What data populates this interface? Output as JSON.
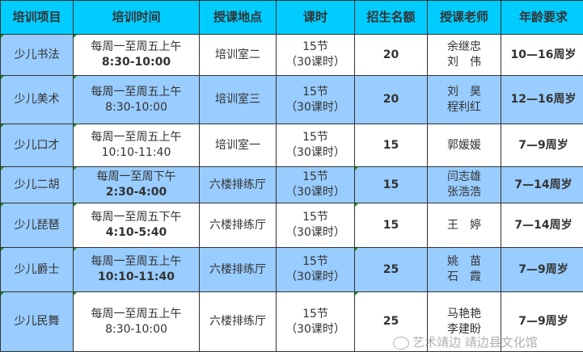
{
  "headers": [
    "培训项目",
    "培训时间",
    "授课地点",
    "课时",
    "招生名额",
    "授课老师",
    "年龄要求"
  ],
  "rows": [
    {
      "name": "少儿书法",
      "time": [
        "每周一至周五上午",
        "8:30-10:00"
      ],
      "place": "培训室二",
      "hours": [
        "15节",
        "（30课时）"
      ],
      "quota": "20",
      "teachers": [
        "余继忠",
        "刘　伟"
      ],
      "age": "10—16周岁"
    },
    {
      "name": "少儿美术",
      "time": [
        "每周一至周五上午",
        "8:30-10:00"
      ],
      "place": "培训室三",
      "hours": [
        "15节",
        "（30课时）"
      ],
      "quota": "20",
      "teachers": [
        "刘　昊",
        "程利红"
      ],
      "age": "12—16周岁"
    },
    {
      "name": "少儿口才",
      "time": [
        "每周一至周五上午",
        "10:10-11:40"
      ],
      "place": "培训室一",
      "hours": [
        "15节",
        "（30课时）"
      ],
      "quota": "15",
      "teachers": [
        "郭媛媛"
      ],
      "age": "7—9周岁"
    },
    {
      "name": "少儿二胡",
      "time": [
        "每周一至周下午",
        "2:30-4:00"
      ],
      "place": "六楼排练厅",
      "hours": [
        "15节",
        "（30课时）"
      ],
      "quota": "15",
      "teachers": [
        "闫志雄",
        "张浩浩"
      ],
      "age": "7—14周岁"
    },
    {
      "name": "少儿琵琶",
      "time": [
        "每周一至周五下午",
        "4:10-5:40"
      ],
      "place": "六楼排练厅",
      "hours": [
        "15节",
        "（30课时）"
      ],
      "quota": "15",
      "teachers": [
        "王　婷"
      ],
      "age": "7—14周岁"
    },
    {
      "name": "少儿爵士",
      "time": [
        "每周一至周五上午",
        "10:10-11:40"
      ],
      "place": "六楼排练厅",
      "hours": [
        "15节",
        "（30课时）"
      ],
      "quota": "25",
      "teachers": [
        "姚　苗",
        "石　霞"
      ],
      "age": "7—9周岁"
    },
    {
      "name": "少儿民舞",
      "time": [
        "每周一至周五上午",
        "8:30-10:00"
      ],
      "place": "六楼排练厅",
      "hours": [
        "15节",
        "（30课时）"
      ],
      "quota": "25",
      "teachers": [
        "马艳艳",
        "李建盼"
      ],
      "age": "7—9周岁"
    }
  ],
  "watermark": "艺术靖边 靖边县文化馆",
  "colors": {
    "header": "#00CCFF",
    "blue_row": "#99CCFF",
    "white_row": "#FFFFFF"
  }
}
